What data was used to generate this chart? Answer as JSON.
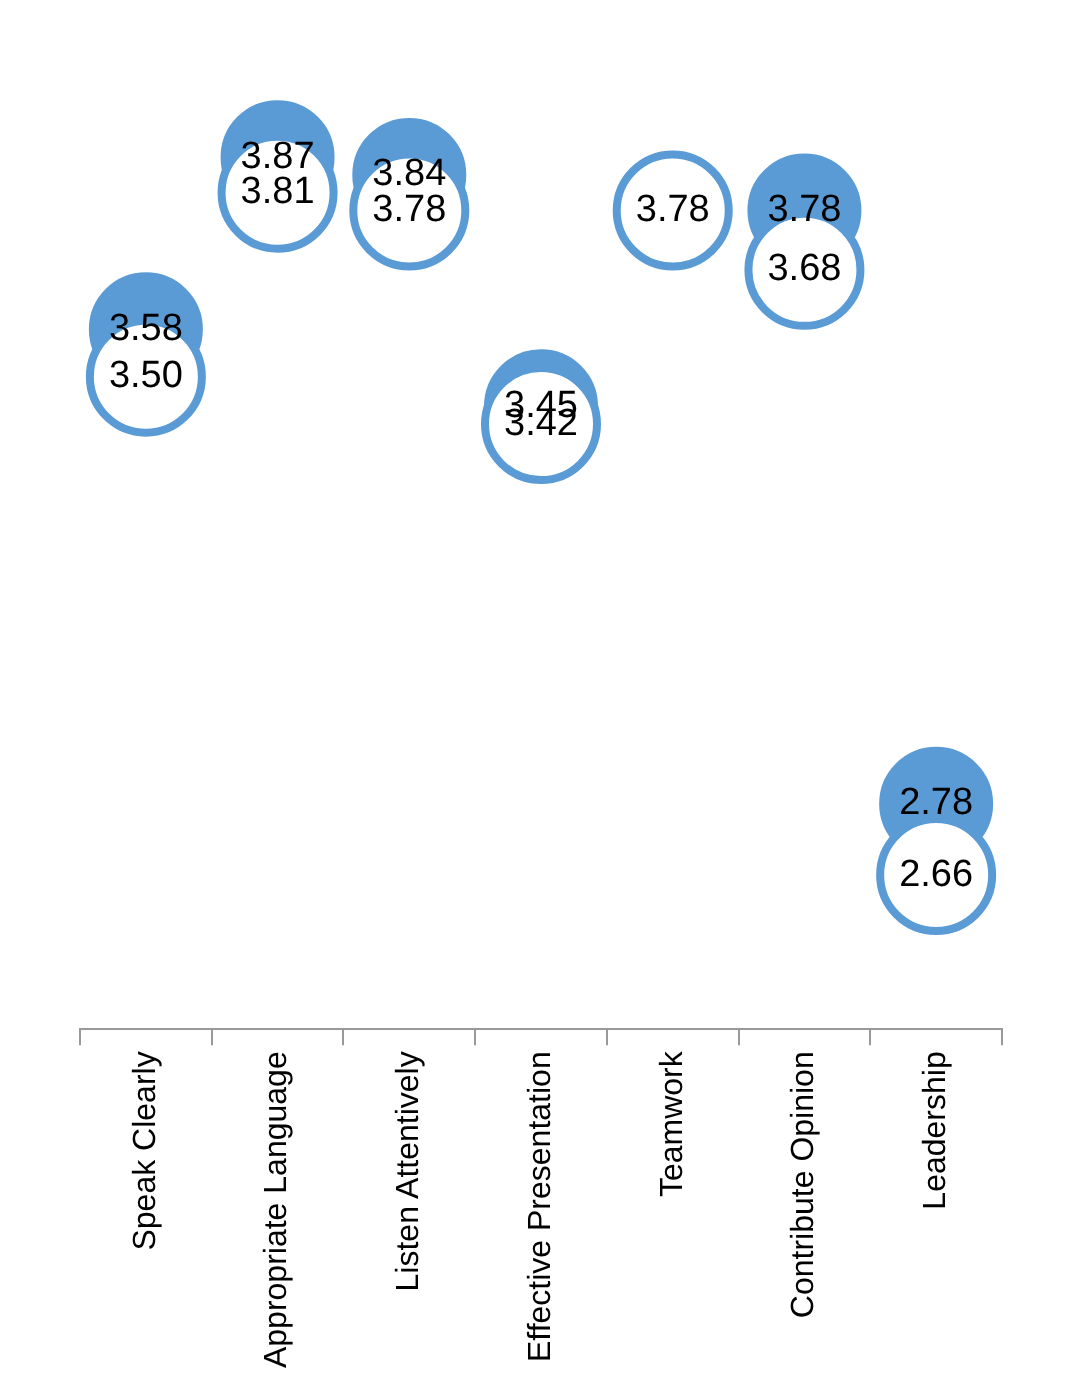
{
  "chart_data": {
    "type": "scatter",
    "categories": [
      "Speak Clearly",
      "Appropriate Language",
      "Listen Attentively",
      "Effective Presentation",
      "Teamwork",
      "Contribute Opinion",
      "Leadership"
    ],
    "series": [
      {
        "color": "#5b9bd5",
        "values": [
          3.58,
          3.87,
          3.84,
          3.45,
          null,
          3.78,
          2.78
        ],
        "value_labels": [
          "3.58",
          "3.87",
          "3.84",
          "3.45",
          null,
          "3.78",
          "2.78"
        ]
      },
      {
        "color": "#ffffff",
        "values": [
          3.5,
          3.81,
          3.78,
          3.42,
          3.78,
          3.68,
          2.66
        ],
        "value_labels": [
          "3.50",
          "3.81",
          "3.78",
          "3.42",
          "3.78",
          "3.68",
          "2.66"
        ]
      }
    ],
    "tick_labels": "x",
    "marker": "circle",
    "legend": false,
    "grid": false
  }
}
